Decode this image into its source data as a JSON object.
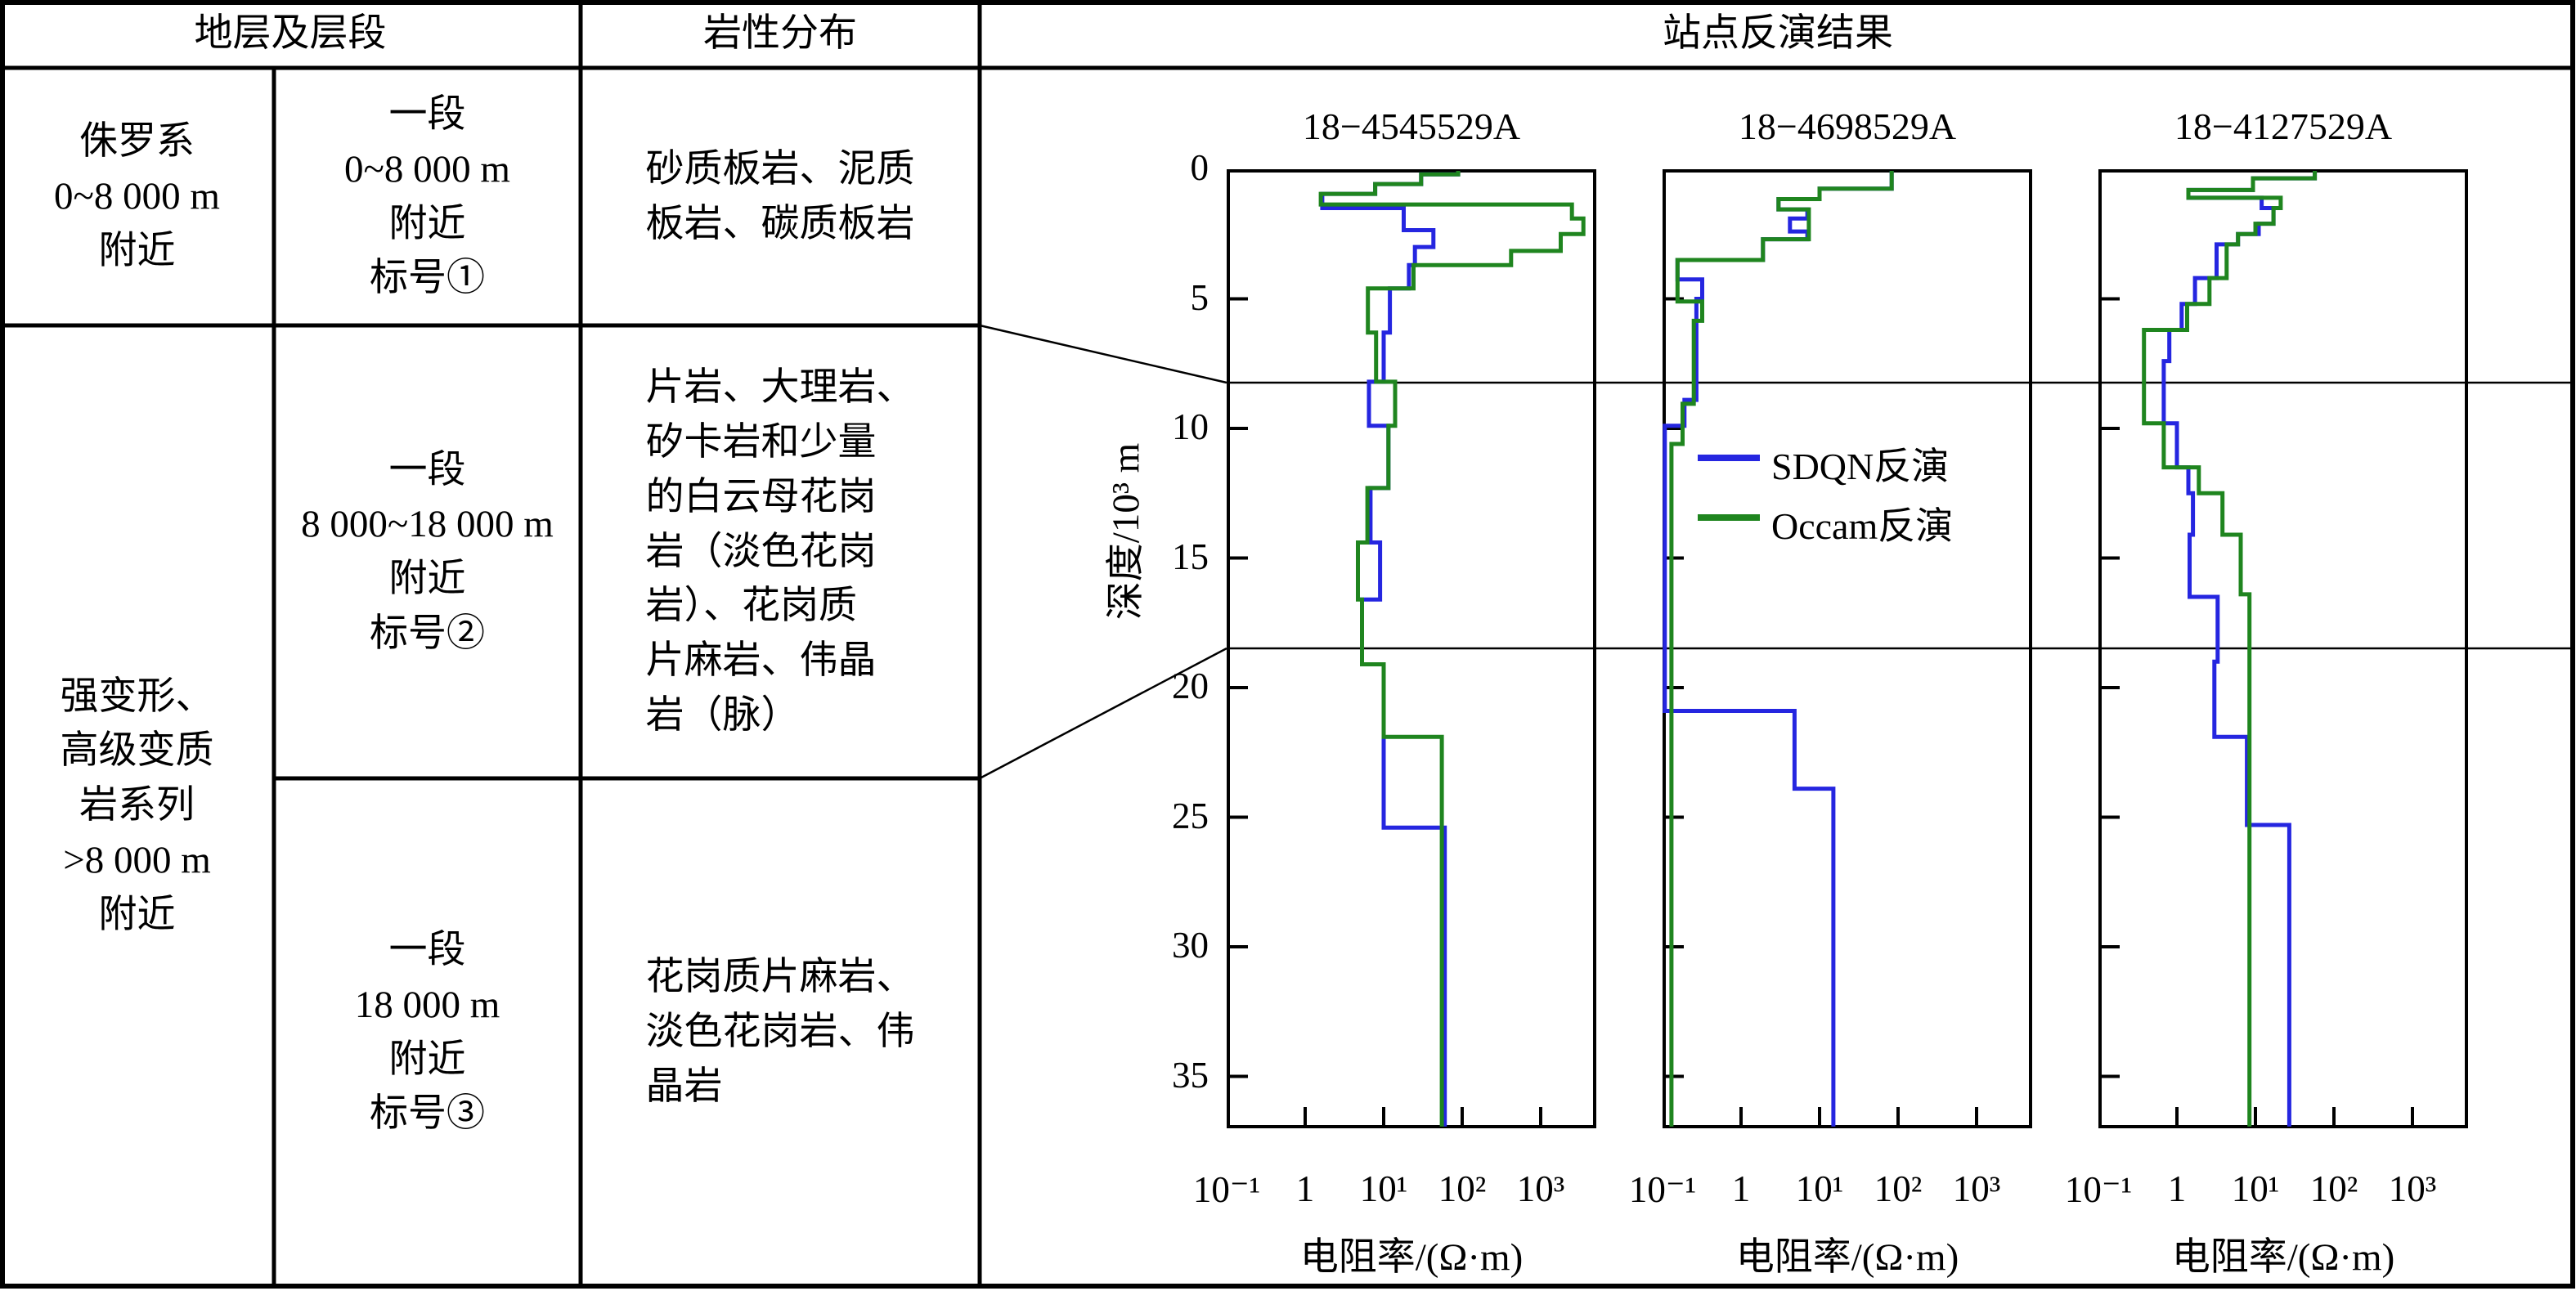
{
  "colors": {
    "sdqn_blue": "#2526e0",
    "occam_green": "#1f851f",
    "line_black": "#000000",
    "background": "#ffffff"
  },
  "table": {
    "header": {
      "strata_segment": "地层及层段",
      "lithology": "岩性分布",
      "inversion_results": "站点反演结果"
    },
    "merged_strata": "强变形、\n高级变质\n岩系列\n>8 000 m\n附近",
    "rows": [
      {
        "strata": "侏罗系\n0~8 000 m\n附近",
        "segment": "一段\n0~8 000 m\n附近\n标号①",
        "lithology": "砂质板岩、泥质\n板岩、碳质板岩"
      },
      {
        "strata": "",
        "segment": "一段\n8 000~18 000 m\n附近\n标号②",
        "lithology": "片岩、大理岩、\n矽卡岩和少量\n的白云母花岗\n岩（淡色花岗\n岩）、花岗质\n片麻岩、伟晶\n岩（脉）"
      },
      {
        "strata": "",
        "segment": "一段\n18 000 m\n附近\n标号③",
        "lithology": "花岗质片麻岩、\n淡色花岗岩、伟\n晶岩"
      }
    ]
  },
  "chart_data": {
    "type": "line",
    "title": "站点反演结果",
    "xlabel": "电阻率/(Ω·m)",
    "ylabel": "深度/10³ m",
    "x_scale": "log",
    "x_tick_labels": [
      "10⁻¹",
      "1",
      "10¹",
      "10²",
      "10³"
    ],
    "x_tick_values": [
      0.1,
      1,
      10,
      100,
      1000
    ],
    "x_range": [
      0.1,
      5100
    ],
    "y_range": [
      0,
      37
    ],
    "y_tick_values": [
      0,
      5,
      10,
      15,
      20,
      25,
      30,
      35
    ],
    "boundary_depths": [
      8.2,
      18.4
    ],
    "grid": false,
    "legend_position": "inside-station-2",
    "legend": [
      {
        "name": "SDQN反演",
        "color": "#2526e0"
      },
      {
        "name": "Occam反演",
        "color": "#1f851f"
      }
    ],
    "stations": [
      {
        "title": "18−4545529A",
        "series": [
          {
            "name": "SDQN反演",
            "color": "#2526e0",
            "steps": [
              [
                0,
                89
              ],
              [
                0.2,
                30
              ],
              [
                0.57,
                7.8
              ],
              [
                0.95,
                1.65
              ],
              [
                1.5,
                18
              ],
              [
                2.35,
                43
              ],
              [
                3.0,
                25
              ],
              [
                3.7,
                21
              ],
              [
                4.6,
                12
              ],
              [
                6.3,
                10
              ],
              [
                8.2,
                6.5
              ],
              [
                9.9,
                11.5
              ],
              [
                12.3,
                6.8
              ],
              [
                14.4,
                9
              ],
              [
                16.6,
                5.3
              ],
              [
                19.1,
                10
              ],
              [
                25.4,
                60
              ]
            ]
          },
          {
            "name": "Occam反演",
            "color": "#1f851f",
            "steps": [
              [
                0,
                89
              ],
              [
                0.2,
                30
              ],
              [
                0.57,
                7.8
              ],
              [
                0.95,
                1.58
              ],
              [
                1.36,
                2500
              ],
              [
                1.9,
                3500
              ],
              [
                2.5,
                1800
              ],
              [
                3.15,
                420
              ],
              [
                3.7,
                24
              ],
              [
                4.6,
                6.3
              ],
              [
                6.3,
                8
              ],
              [
                8.2,
                14
              ],
              [
                9.9,
                11.5
              ],
              [
                12.3,
                6.2
              ],
              [
                14.4,
                4.7
              ],
              [
                16.6,
                5.3
              ],
              [
                19.1,
                10
              ],
              [
                21.9,
                55
              ]
            ]
          }
        ]
      },
      {
        "title": "18−4698529A",
        "series": [
          {
            "name": "SDQN反演",
            "color": "#2526e0",
            "steps": [
              [
                0,
                83
              ],
              [
                0.75,
                10
              ],
              [
                1.15,
                3.0
              ],
              [
                1.55,
                7
              ],
              [
                1.9,
                4.2
              ],
              [
                2.4,
                7
              ],
              [
                2.7,
                1.9
              ],
              [
                3.5,
                0.155
              ],
              [
                4.25,
                0.32
              ],
              [
                5.0,
                0.27
              ],
              [
                8.9,
                0.19
              ],
              [
                9.9,
                0.107
              ],
              [
                20.9,
                4.8
              ],
              [
                23.9,
                15
              ]
            ]
          },
          {
            "name": "Occam反演",
            "color": "#1f851f",
            "steps": [
              [
                0,
                83
              ],
              [
                0.75,
                10
              ],
              [
                1.15,
                3.0
              ],
              [
                1.55,
                7.3
              ],
              [
                2.7,
                1.9
              ],
              [
                3.5,
                0.155
              ],
              [
                5.1,
                0.32
              ],
              [
                5.85,
                0.25
              ],
              [
                9.05,
                0.18
              ],
              [
                10.6,
                0.13
              ]
            ]
          }
        ]
      },
      {
        "title": "18−4127529A",
        "series": [
          {
            "name": "SDQN反演",
            "color": "#2526e0",
            "steps": [
              [
                0,
                57
              ],
              [
                0.35,
                9.3
              ],
              [
                0.8,
                1.4
              ],
              [
                1.1,
                12
              ],
              [
                1.5,
                17
              ],
              [
                2.1,
                11
              ],
              [
                2.5,
                6.0
              ],
              [
                2.9,
                3.2
              ],
              [
                4.2,
                1.7
              ],
              [
                5.2,
                1.15
              ],
              [
                6.2,
                0.8
              ],
              [
                7.4,
                0.68
              ],
              [
                9.8,
                1.0
              ],
              [
                11.5,
                1.4
              ],
              [
                12.5,
                1.6
              ],
              [
                14.1,
                1.45
              ],
              [
                16.5,
                3.3
              ],
              [
                19.0,
                3.0
              ],
              [
                21.9,
                7.8
              ],
              [
                25.3,
                27
              ]
            ]
          },
          {
            "name": "Occam反演",
            "color": "#1f851f",
            "steps": [
              [
                0,
                57
              ],
              [
                0.35,
                9.3
              ],
              [
                0.8,
                1.4
              ],
              [
                1.1,
                21
              ],
              [
                1.5,
                17
              ],
              [
                2.1,
                10
              ],
              [
                2.5,
                6.0
              ],
              [
                2.9,
                4.3
              ],
              [
                4.2,
                2.6
              ],
              [
                5.2,
                1.35
              ],
              [
                6.2,
                0.38
              ],
              [
                9.8,
                0.68
              ],
              [
                11.5,
                1.9
              ],
              [
                12.5,
                3.8
              ],
              [
                14.1,
                6.5
              ],
              [
                16.4,
                8.4
              ]
            ]
          }
        ]
      }
    ]
  }
}
